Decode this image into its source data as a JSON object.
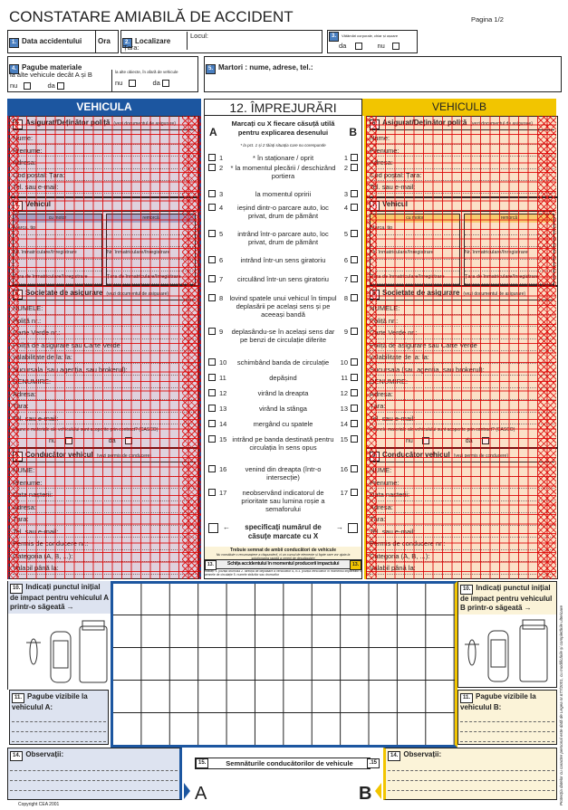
{
  "title": "CONSTATARE AMIABILĂ DE ACCIDENT",
  "page": "Pagina 1/2",
  "s1": {
    "num": "1.",
    "label": "Data accidentului",
    "ora": "Ora"
  },
  "s2": {
    "num": "2.",
    "label": "Localizare",
    "tara": "Țara:",
    "locul": "Locul:"
  },
  "s3": {
    "num": "3.",
    "label": "Vătămări corporale, chiar și ușoare",
    "da": "da",
    "nu": "nu"
  },
  "s4": {
    "num": "4.",
    "label": "Pagube materiale",
    "left": "la alte vehicule decât A și B",
    "right": "la alte obiecte, în afară de vehicule",
    "nu": "nu",
    "da": "da"
  },
  "s5": {
    "num": "5.",
    "label": "Martori : nume, adrese, tel.:"
  },
  "vehA": {
    "title": "VEHICULA",
    "letter": "A"
  },
  "vehB": {
    "title": "VEHICULB",
    "letter": "B"
  },
  "sections": {
    "s6": {
      "num": "6.",
      "label": "Asigurat/Deținător poliță",
      "note": "(vezi documentul de asigurare)",
      "rows": [
        "Nume:",
        "Prenume:",
        "Adresa:",
        "Cod poștal:                    Țara:",
        "Tel. sau e-mail:"
      ]
    },
    "s7": {
      "num": "7.",
      "label": "Vehicul",
      "motor": "cu motor",
      "remorca": "remorcă",
      "left": [
        "Marca, tip",
        "",
        "Nr. înmatriculare/înregistrare",
        "",
        "Țara de înmatriculare/înregistrare"
      ],
      "right": [
        "",
        "",
        "Nr. înmatriculare/înregistrare",
        "",
        "Țara de înmatriculare/înregistrare"
      ]
    },
    "s8": {
      "num": "8.",
      "label": "Societate de asigurare",
      "note": "(vezi documentul de asigurare)",
      "rows": [
        "NUMELE:",
        "Poliță nr.:",
        "Carte Verde nr.:",
        "Poliță de asigurare sau Carte Verde",
        "valabilitate          de la:                 la:",
        "Sucursala (sau agenția, sau brokerul):",
        "DENUMIRE:",
        "Adresa:",
        "                                    Țara:",
        "Tel. sau e-mail:",
        "Daunele materiale ale vehiculului sunt acoperite prin contract? (CASCO)"
      ],
      "nu": "nu",
      "da": "da"
    },
    "s9": {
      "num": "9.",
      "label": "Conducător vehicul",
      "note": "(vezi permis de conducere)",
      "rows": [
        "NUME:",
        "Prenume:",
        "Data nașterii:",
        "Adresa:",
        "                                    Țara:",
        "Tel. sau e-mail:",
        "Permis de conducere nr.:",
        "Categoria (A, B, ...):",
        "Valabil până la:"
      ]
    }
  },
  "s12": {
    "title": "12. ÎMPREJURĂRI",
    "a": "A",
    "b": "B",
    "instr": "Marcați cu X fiecare căsuță utilă pentru explicarea desenului",
    "note": "* la pct. 1 și 2 tăiați situația care nu corespunde",
    "items": [
      {
        "n": "1",
        "t": "* în staționare / oprit"
      },
      {
        "n": "2",
        "t": "* la momentul plecării / deschizând portiera"
      },
      {
        "n": "3",
        "t": "la momentul opririi"
      },
      {
        "n": "4",
        "t": "ieșind dintr-o parcare auto, loc privat, drum de pământ"
      },
      {
        "n": "5",
        "t": "intrând într-o parcare auto, loc privat, drum de pământ"
      },
      {
        "n": "6",
        "t": "intrând într-un sens giratoriu"
      },
      {
        "n": "7",
        "t": "circulând într-un sens giratoriu"
      },
      {
        "n": "8",
        "t": "lovind spatele unui vehicul în timpul deplasării pe același sens și pe aceeași bandă"
      },
      {
        "n": "9",
        "t": "deplasându-se în același sens dar pe benzi de circulație diferite"
      },
      {
        "n": "10",
        "t": "schimbând banda de circulație"
      },
      {
        "n": "11",
        "t": "depășind"
      },
      {
        "n": "12",
        "t": "virând la dreapta"
      },
      {
        "n": "13",
        "t": "virând la stânga"
      },
      {
        "n": "14",
        "t": "mergând cu spatele"
      },
      {
        "n": "15",
        "t": "intrând pe banda destinată pentru circulația în sens opus"
      },
      {
        "n": "16",
        "t": "venind din dreapta (într-o intersecție)"
      },
      {
        "n": "17",
        "t": "neobservând indicatorul de prioritate sau lumina roșie a semaforului"
      }
    ],
    "specify": "specificați numărul de căsuțe marcate cu X",
    "arrowL": "←",
    "arrowR": "→",
    "sign_note": "Trebuie semnat de ambii conducători de vehicule",
    "sign_note2": "Nu constituie o recunoaștere a răspunderii, ci un cumul de elemente și fapte care vor ajuta la soluționarea rapidă a cererii de despăgubire"
  },
  "s13": {
    "num": "13.",
    "label": "Schița accidentului în momentul producerii impactului",
    "hint": "Indicați: 1. poziția drumului 2. direcția de deplasare a vehiculelor A, B 3. poziția vehiculelor în momentul impactului 4. semnele de circulație 5. numele străzilor sau drumurilor"
  },
  "s10A": {
    "num": "10.",
    "label": "Indicați punctul inițial de impact pentru vehiculul A printr-o săgeată →"
  },
  "s10B": {
    "num": "10.",
    "label": "Indicați punctul inițial de impact pentru vehiculul B printr-o săgeată →"
  },
  "s11A": {
    "num": "11.",
    "label": "Pagube vizibile la vehiculul A:"
  },
  "s11B": {
    "num": "11.",
    "label": "Pagube vizibile la vehiculul B:"
  },
  "s14": {
    "num": "14.",
    "label": "Observații:"
  },
  "s15": {
    "num": "15.",
    "label": "Semnăturile conducătorilor de vehicule",
    "num2": ".15"
  },
  "copyright": "Copyright CEA 2001",
  "side_text": "Protecția datelor cu caracter personal este dată de Legea nr.677/2001, cu modificările și completările ulterioare",
  "colors": {
    "blue": "#1c56a0",
    "yellow": "#f2c500",
    "overlay_red": "#dc0000"
  }
}
